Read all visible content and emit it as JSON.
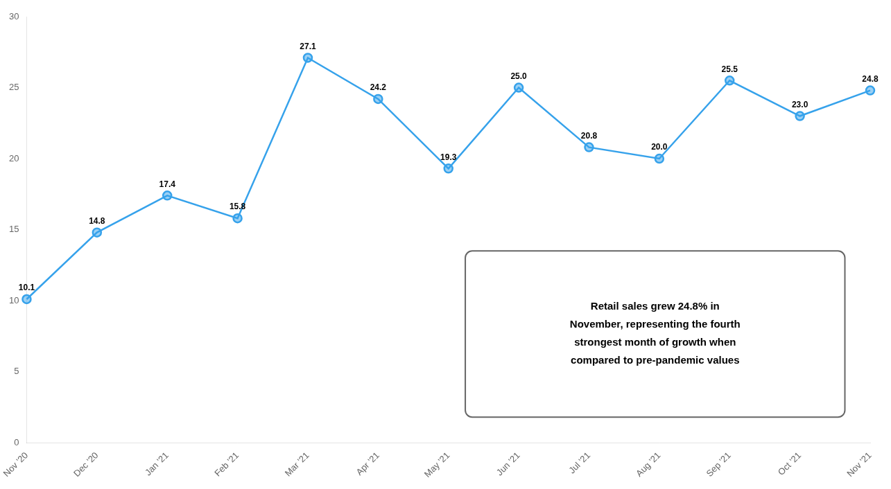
{
  "chart_data": {
    "type": "line",
    "categories": [
      "Nov '20",
      "Dec '20",
      "Jan '21",
      "Feb '21",
      "Mar '21",
      "Apr '21",
      "May '21",
      "Jun '21",
      "Jul '21",
      "Aug '21",
      "Sep '21",
      "Oct '21",
      "Nov '21"
    ],
    "values": [
      10.1,
      14.8,
      17.4,
      15.8,
      27.1,
      24.2,
      19.3,
      25.0,
      20.8,
      20.0,
      25.5,
      23.0,
      24.8
    ],
    "value_labels": [
      "10.1",
      "14.8",
      "17.4",
      "15.8",
      "27.1",
      "24.2",
      "19.3",
      "25.0",
      "20.8",
      "20.0",
      "25.5",
      "23.0",
      "24.8"
    ],
    "data_labels": true,
    "ylim": [
      0,
      30
    ],
    "yticks": [
      0,
      5,
      10,
      15,
      20,
      25,
      30
    ],
    "grid": false,
    "annotation": "Retail sales grew 24.8% in\nNovember, representing the fourth\nstrongest month of growth when\ncompared to pre-pandemic values"
  }
}
